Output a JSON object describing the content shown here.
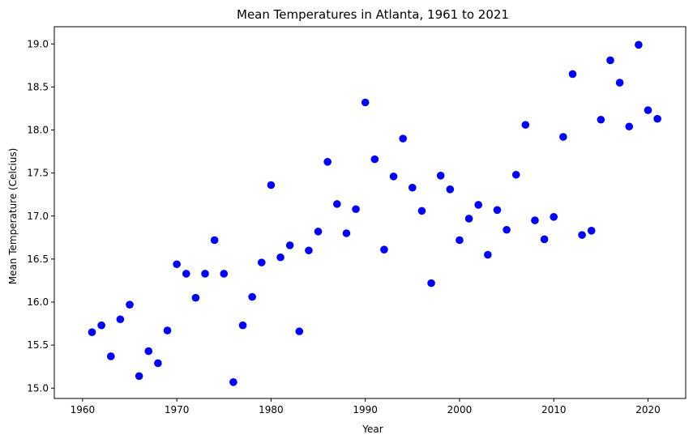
{
  "chart_data": {
    "type": "scatter",
    "title": "Mean Temperatures in Atlanta, 1961 to 2021",
    "xlabel": "Year",
    "ylabel": "Mean Temperature (Celcius)",
    "xlim": [
      1957,
      2024
    ],
    "ylim": [
      14.88,
      19.2
    ],
    "grid": false,
    "marker_color": "#0000ff",
    "x_ticks": [
      1960,
      1970,
      1980,
      1990,
      2000,
      2010,
      2020
    ],
    "x_tick_labels": [
      "1960",
      "1970",
      "1980",
      "1990",
      "2000",
      "2010",
      "2020"
    ],
    "y_ticks": [
      15.0,
      15.5,
      16.0,
      16.5,
      17.0,
      17.5,
      18.0,
      18.5,
      19.0
    ],
    "y_tick_labels": [
      "15.0",
      "15.5",
      "16.0",
      "16.5",
      "17.0",
      "17.5",
      "18.0",
      "18.5",
      "19.0"
    ],
    "points": [
      {
        "x": 1961,
        "y": 15.65
      },
      {
        "x": 1962,
        "y": 15.73
      },
      {
        "x": 1963,
        "y": 15.37
      },
      {
        "x": 1964,
        "y": 15.8
      },
      {
        "x": 1965,
        "y": 15.97
      },
      {
        "x": 1966,
        "y": 15.14
      },
      {
        "x": 1967,
        "y": 15.43
      },
      {
        "x": 1968,
        "y": 15.29
      },
      {
        "x": 1969,
        "y": 15.67
      },
      {
        "x": 1970,
        "y": 16.44
      },
      {
        "x": 1971,
        "y": 16.33
      },
      {
        "x": 1972,
        "y": 16.05
      },
      {
        "x": 1973,
        "y": 16.33
      },
      {
        "x": 1974,
        "y": 16.72
      },
      {
        "x": 1975,
        "y": 16.33
      },
      {
        "x": 1976,
        "y": 15.07
      },
      {
        "x": 1977,
        "y": 15.73
      },
      {
        "x": 1978,
        "y": 16.06
      },
      {
        "x": 1979,
        "y": 16.46
      },
      {
        "x": 1980,
        "y": 17.36
      },
      {
        "x": 1981,
        "y": 16.52
      },
      {
        "x": 1982,
        "y": 16.66
      },
      {
        "x": 1983,
        "y": 15.66
      },
      {
        "x": 1984,
        "y": 16.6
      },
      {
        "x": 1985,
        "y": 16.82
      },
      {
        "x": 1986,
        "y": 17.63
      },
      {
        "x": 1987,
        "y": 17.14
      },
      {
        "x": 1988,
        "y": 16.8
      },
      {
        "x": 1989,
        "y": 17.08
      },
      {
        "x": 1990,
        "y": 18.32
      },
      {
        "x": 1991,
        "y": 17.66
      },
      {
        "x": 1992,
        "y": 16.61
      },
      {
        "x": 1993,
        "y": 17.46
      },
      {
        "x": 1994,
        "y": 17.9
      },
      {
        "x": 1995,
        "y": 17.33
      },
      {
        "x": 1996,
        "y": 17.06
      },
      {
        "x": 1997,
        "y": 16.22
      },
      {
        "x": 1998,
        "y": 17.47
      },
      {
        "x": 1999,
        "y": 17.31
      },
      {
        "x": 2000,
        "y": 16.72
      },
      {
        "x": 2001,
        "y": 16.97
      },
      {
        "x": 2002,
        "y": 17.13
      },
      {
        "x": 2003,
        "y": 16.55
      },
      {
        "x": 2004,
        "y": 17.07
      },
      {
        "x": 2005,
        "y": 16.84
      },
      {
        "x": 2006,
        "y": 17.48
      },
      {
        "x": 2007,
        "y": 18.06
      },
      {
        "x": 2008,
        "y": 16.95
      },
      {
        "x": 2009,
        "y": 16.73
      },
      {
        "x": 2010,
        "y": 16.99
      },
      {
        "x": 2011,
        "y": 17.92
      },
      {
        "x": 2012,
        "y": 18.65
      },
      {
        "x": 2013,
        "y": 16.78
      },
      {
        "x": 2014,
        "y": 16.83
      },
      {
        "x": 2015,
        "y": 18.12
      },
      {
        "x": 2016,
        "y": 18.81
      },
      {
        "x": 2017,
        "y": 18.55
      },
      {
        "x": 2018,
        "y": 18.04
      },
      {
        "x": 2019,
        "y": 18.99
      },
      {
        "x": 2020,
        "y": 18.23
      },
      {
        "x": 2021,
        "y": 18.13
      }
    ]
  }
}
